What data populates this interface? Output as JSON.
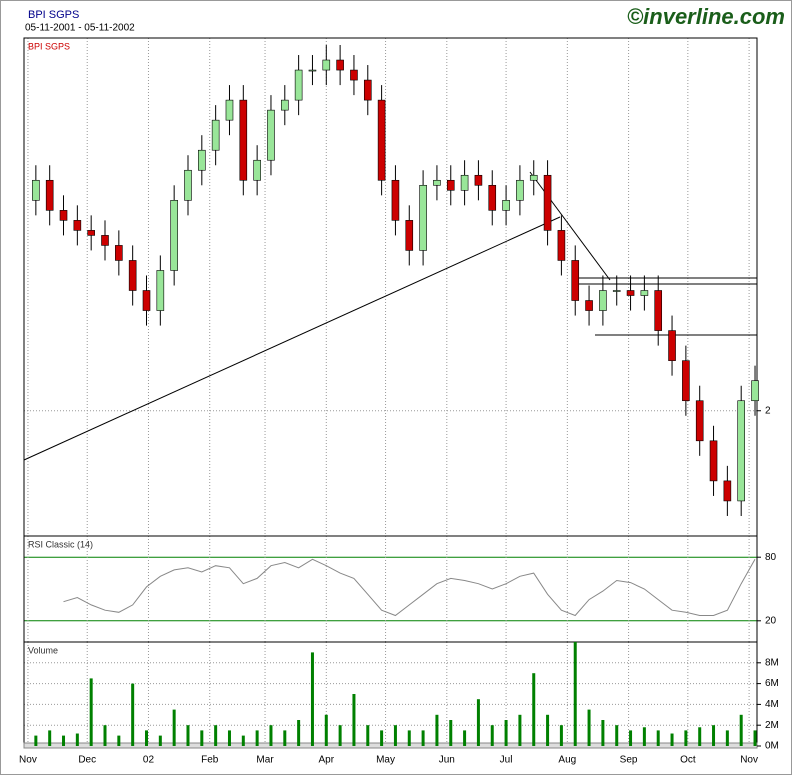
{
  "header": {
    "title": "BPI SGPS",
    "range": "05-11-2001 - 05-11-2002",
    "brand": "©inverline.com"
  },
  "chart_data": [
    {
      "type": "candlestick",
      "title": "BPI SGPS",
      "x": [
        "2001-11-05",
        "2001-11-12",
        "2001-11-19",
        "2001-11-26",
        "2001-12-03",
        "2001-12-10",
        "2001-12-17",
        "2001-12-24",
        "2001-12-31",
        "2002-01-07",
        "2002-01-14",
        "2002-01-21",
        "2002-01-28",
        "2002-02-04",
        "2002-02-11",
        "2002-02-18",
        "2002-02-25",
        "2002-03-04",
        "2002-03-11",
        "2002-03-18",
        "2002-03-25",
        "2002-04-01",
        "2002-04-08",
        "2002-04-15",
        "2002-04-22",
        "2002-04-29",
        "2002-05-06",
        "2002-05-13",
        "2002-05-20",
        "2002-05-27",
        "2002-06-03",
        "2002-06-10",
        "2002-06-17",
        "2002-06-24",
        "2002-07-01",
        "2002-07-08",
        "2002-07-15",
        "2002-07-22",
        "2002-07-29",
        "2002-08-05",
        "2002-08-12",
        "2002-08-19",
        "2002-08-26",
        "2002-09-02",
        "2002-09-09",
        "2002-09-16",
        "2002-09-23",
        "2002-09-30",
        "2002-10-07",
        "2002-10-14",
        "2002-10-21",
        "2002-10-28",
        "2002-11-04"
      ],
      "open": [
        2.42,
        2.46,
        2.4,
        2.38,
        2.36,
        2.35,
        2.33,
        2.3,
        2.24,
        2.2,
        2.28,
        2.42,
        2.48,
        2.52,
        2.58,
        2.62,
        2.46,
        2.5,
        2.6,
        2.62,
        2.68,
        2.68,
        2.7,
        2.68,
        2.66,
        2.62,
        2.46,
        2.38,
        2.32,
        2.45,
        2.46,
        2.44,
        2.47,
        2.45,
        2.4,
        2.42,
        2.46,
        2.47,
        2.36,
        2.3,
        2.22,
        2.2,
        2.24,
        2.24,
        2.23,
        2.24,
        2.16,
        2.1,
        2.02,
        1.94,
        1.86,
        1.82,
        2.02
      ],
      "high": [
        2.49,
        2.49,
        2.43,
        2.41,
        2.39,
        2.38,
        2.36,
        2.33,
        2.27,
        2.31,
        2.45,
        2.51,
        2.55,
        2.61,
        2.65,
        2.65,
        2.53,
        2.63,
        2.65,
        2.71,
        2.71,
        2.73,
        2.73,
        2.71,
        2.69,
        2.65,
        2.49,
        2.41,
        2.48,
        2.49,
        2.49,
        2.5,
        2.5,
        2.48,
        2.45,
        2.49,
        2.5,
        2.5,
        2.39,
        2.33,
        2.25,
        2.27,
        2.27,
        2.27,
        2.27,
        2.27,
        2.19,
        2.13,
        2.05,
        1.97,
        1.89,
        2.05,
        2.09
      ],
      "low": [
        2.39,
        2.37,
        2.35,
        2.33,
        2.32,
        2.3,
        2.27,
        2.21,
        2.17,
        2.17,
        2.25,
        2.39,
        2.45,
        2.49,
        2.55,
        2.43,
        2.43,
        2.47,
        2.57,
        2.59,
        2.65,
        2.65,
        2.65,
        2.63,
        2.59,
        2.43,
        2.35,
        2.29,
        2.29,
        2.42,
        2.41,
        2.41,
        2.42,
        2.37,
        2.37,
        2.39,
        2.43,
        2.33,
        2.27,
        2.19,
        2.17,
        2.17,
        2.21,
        2.2,
        2.2,
        2.13,
        2.07,
        1.99,
        1.91,
        1.83,
        1.79,
        1.79,
        1.99
      ],
      "close": [
        2.46,
        2.4,
        2.38,
        2.36,
        2.35,
        2.33,
        2.3,
        2.24,
        2.2,
        2.28,
        2.42,
        2.48,
        2.52,
        2.58,
        2.62,
        2.46,
        2.5,
        2.6,
        2.62,
        2.68,
        2.68,
        2.7,
        2.68,
        2.66,
        2.62,
        2.46,
        2.38,
        2.32,
        2.45,
        2.46,
        2.44,
        2.47,
        2.45,
        2.4,
        2.42,
        2.46,
        2.47,
        2.36,
        2.3,
        2.22,
        2.2,
        2.24,
        2.24,
        2.23,
        2.24,
        2.16,
        2.1,
        2.02,
        1.94,
        1.86,
        1.82,
        2.02,
        2.06
      ],
      "up_color": "#99e699",
      "down_color": "#cc0000",
      "xlim": [
        "2001-10-30",
        "2002-11-05"
      ],
      "ylim": [
        1.75,
        2.74
      ],
      "yticks": [
        2
      ],
      "grid": true
    },
    {
      "type": "line",
      "title": "RSI Classic (14)",
      "x": [
        "2001-11-05",
        "2001-11-12",
        "2001-11-19",
        "2001-11-26",
        "2001-12-03",
        "2001-12-10",
        "2001-12-17",
        "2001-12-24",
        "2001-12-31",
        "2002-01-07",
        "2002-01-14",
        "2002-01-21",
        "2002-01-28",
        "2002-02-04",
        "2002-02-11",
        "2002-02-18",
        "2002-02-25",
        "2002-03-04",
        "2002-03-11",
        "2002-03-18",
        "2002-03-25",
        "2002-04-01",
        "2002-04-08",
        "2002-04-15",
        "2002-04-22",
        "2002-04-29",
        "2002-05-06",
        "2002-05-13",
        "2002-05-20",
        "2002-05-27",
        "2002-06-03",
        "2002-06-10",
        "2002-06-17",
        "2002-06-24",
        "2002-07-01",
        "2002-07-08",
        "2002-07-15",
        "2002-07-22",
        "2002-07-29",
        "2002-08-05",
        "2002-08-12",
        "2002-08-19",
        "2002-08-26",
        "2002-09-02",
        "2002-09-09",
        "2002-09-16",
        "2002-09-23",
        "2002-09-30",
        "2002-10-07",
        "2002-10-14",
        "2002-10-21",
        "2002-10-28",
        "2002-11-04"
      ],
      "values": [
        null,
        null,
        38,
        42,
        35,
        30,
        28,
        35,
        52,
        62,
        68,
        70,
        66,
        72,
        70,
        55,
        60,
        72,
        75,
        70,
        78,
        72,
        65,
        60,
        45,
        30,
        25,
        35,
        45,
        55,
        60,
        58,
        55,
        50,
        55,
        62,
        65,
        45,
        30,
        25,
        40,
        48,
        58,
        56,
        50,
        40,
        30,
        28,
        25,
        25,
        30,
        55,
        78
      ],
      "color": "#888888",
      "guide_color": "#008000",
      "xlim": [
        "2001-10-30",
        "2002-11-05"
      ],
      "ylim": [
        0,
        100
      ],
      "yticks": [
        20,
        80
      ]
    },
    {
      "type": "bar",
      "title": "Volume",
      "x": [
        "2001-11-05",
        "2001-11-12",
        "2001-11-19",
        "2001-11-26",
        "2001-12-03",
        "2001-12-10",
        "2001-12-17",
        "2001-12-24",
        "2001-12-31",
        "2002-01-07",
        "2002-01-14",
        "2002-01-21",
        "2002-01-28",
        "2002-02-04",
        "2002-02-11",
        "2002-02-18",
        "2002-02-25",
        "2002-03-04",
        "2002-03-11",
        "2002-03-18",
        "2002-03-25",
        "2002-04-01",
        "2002-04-08",
        "2002-04-15",
        "2002-04-22",
        "2002-04-29",
        "2002-05-06",
        "2002-05-13",
        "2002-05-20",
        "2002-05-27",
        "2002-06-03",
        "2002-06-10",
        "2002-06-17",
        "2002-06-24",
        "2002-07-01",
        "2002-07-08",
        "2002-07-15",
        "2002-07-22",
        "2002-07-29",
        "2002-08-05",
        "2002-08-12",
        "2002-08-19",
        "2002-08-26",
        "2002-09-02",
        "2002-09-09",
        "2002-09-16",
        "2002-09-23",
        "2002-09-30",
        "2002-10-07",
        "2002-10-14",
        "2002-10-21",
        "2002-10-28",
        "2002-11-04"
      ],
      "values": [
        1000000,
        1500000,
        1000000,
        1200000,
        6500000,
        2000000,
        1000000,
        6000000,
        1500000,
        1000000,
        3500000,
        2000000,
        1500000,
        2000000,
        1500000,
        1000000,
        1500000,
        2000000,
        1500000,
        2500000,
        9000000,
        3000000,
        2000000,
        5000000,
        2000000,
        1500000,
        2000000,
        1500000,
        1500000,
        3000000,
        2500000,
        1500000,
        4500000,
        2000000,
        2500000,
        3000000,
        7000000,
        3000000,
        2000000,
        10000000,
        3500000,
        2500000,
        2000000,
        1500000,
        1800000,
        1500000,
        1200000,
        1500000,
        1800000,
        2000000,
        1500000,
        3000000,
        1500000
      ],
      "color": "#008000",
      "xlim": [
        "2001-10-30",
        "2002-11-05"
      ],
      "ylim": [
        0,
        10000000
      ],
      "yticks": [
        {
          "value": 0,
          "label": "0M"
        },
        {
          "value": 2000000,
          "label": "2M"
        },
        {
          "value": 4000000,
          "label": "4M"
        },
        {
          "value": 6000000,
          "label": "6M"
        },
        {
          "value": 8000000,
          "label": "8M"
        }
      ],
      "xticks": [
        {
          "value": "2001-11-01",
          "label": "Nov"
        },
        {
          "value": "2001-12-01",
          "label": "Dec"
        },
        {
          "value": "2002-01-01",
          "label": "02"
        },
        {
          "value": "2002-02-01",
          "label": "Feb"
        },
        {
          "value": "2002-03-01",
          "label": "Mar"
        },
        {
          "value": "2002-04-01",
          "label": "Apr"
        },
        {
          "value": "2002-05-01",
          "label": "May"
        },
        {
          "value": "2002-06-01",
          "label": "Jun"
        },
        {
          "value": "2002-07-01",
          "label": "Jul"
        },
        {
          "value": "2002-08-01",
          "label": "Aug"
        },
        {
          "value": "2002-09-01",
          "label": "Sep"
        },
        {
          "value": "2002-10-01",
          "label": "Oct"
        },
        {
          "value": "2002-11-01",
          "label": "Nov"
        }
      ],
      "grid": true
    }
  ]
}
